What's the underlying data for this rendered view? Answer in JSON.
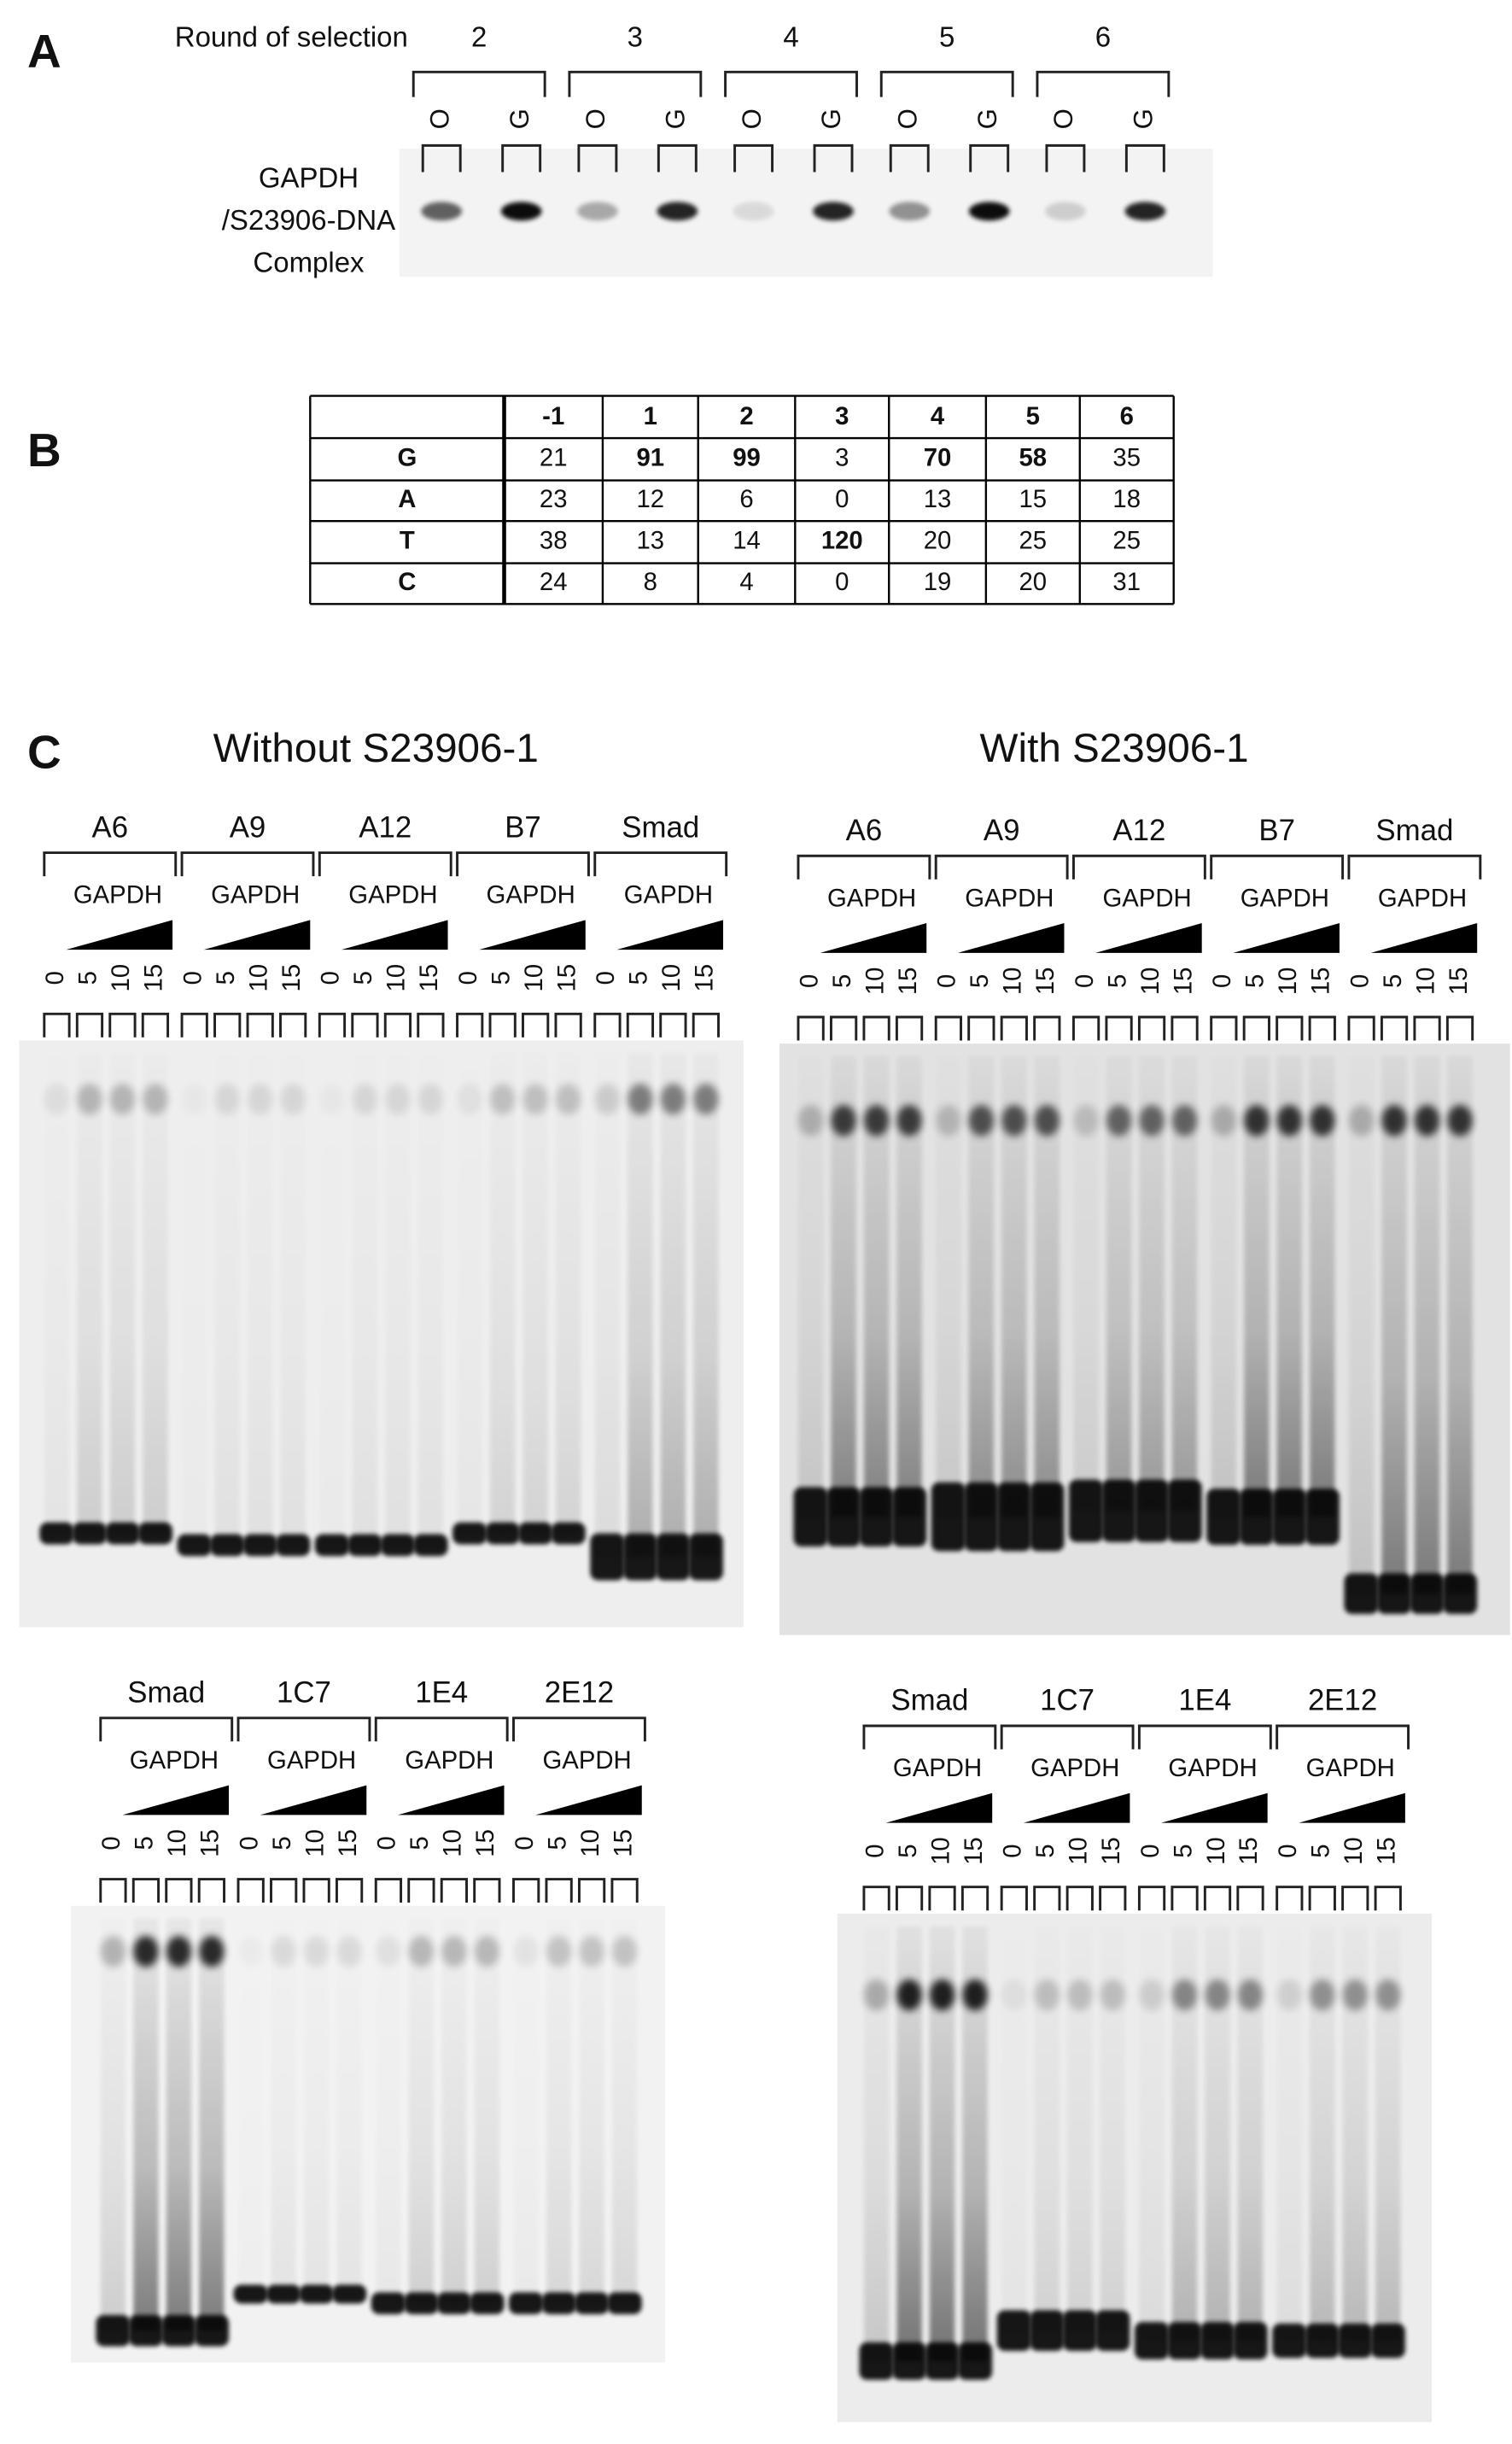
{
  "panel_a": {
    "label": "A",
    "round_label": "Round of selection",
    "rounds": [
      {
        "round": 2,
        "lanes": [
          "O",
          "G"
        ]
      },
      {
        "round": 3,
        "lanes": [
          "O",
          "G"
        ]
      },
      {
        "round": 4,
        "lanes": [
          "O",
          "G"
        ]
      },
      {
        "round": 5,
        "lanes": [
          "O",
          "G"
        ]
      },
      {
        "round": 6,
        "lanes": [
          "O",
          "G"
        ]
      }
    ],
    "complex_label": [
      "GAPDH",
      "/S23906-DNA",
      "Complex"
    ]
  },
  "panel_b": {
    "label": "B",
    "header": [
      -1,
      1,
      2,
      3,
      4,
      5,
      6
    ],
    "rows": [
      {
        "base": "G",
        "values": [
          21,
          91,
          99,
          3,
          70,
          58,
          35
        ],
        "bold": [
          false,
          true,
          true,
          false,
          true,
          true,
          false
        ]
      },
      {
        "base": "A",
        "values": [
          23,
          12,
          6,
          0,
          13,
          15,
          18
        ],
        "bold": [
          false,
          false,
          false,
          false,
          false,
          false,
          false
        ]
      },
      {
        "base": "T",
        "values": [
          38,
          13,
          14,
          120,
          20,
          25,
          25
        ],
        "bold": [
          false,
          false,
          false,
          true,
          false,
          false,
          false
        ]
      },
      {
        "base": "C",
        "values": [
          24,
          8,
          4,
          0,
          19,
          20,
          31
        ],
        "bold": [
          false,
          false,
          false,
          false,
          false,
          false,
          false
        ]
      }
    ]
  },
  "panel_c": {
    "label": "C",
    "conditions": [
      {
        "title": "Without S23906-1",
        "gels": [
          {
            "groups": [
              {
                "name": "A6",
                "protein": "GAPDH",
                "concentrations": [
                  0,
                  5,
                  10,
                  15
                ]
              },
              {
                "name": "A9",
                "protein": "GAPDH",
                "concentrations": [
                  0,
                  5,
                  10,
                  15
                ]
              },
              {
                "name": "A12",
                "protein": "GAPDH",
                "concentrations": [
                  0,
                  5,
                  10,
                  15
                ]
              },
              {
                "name": "B7",
                "protein": "GAPDH",
                "concentrations": [
                  0,
                  5,
                  10,
                  15
                ]
              },
              {
                "name": "Smad",
                "protein": "GAPDH",
                "concentrations": [
                  0,
                  5,
                  10,
                  15
                ]
              }
            ]
          },
          {
            "groups": [
              {
                "name": "Smad",
                "protein": "GAPDH",
                "concentrations": [
                  0,
                  5,
                  10,
                  15
                ]
              },
              {
                "name": "1C7",
                "protein": "GAPDH",
                "concentrations": [
                  0,
                  5,
                  10,
                  15
                ]
              },
              {
                "name": "1E4",
                "protein": "GAPDH",
                "concentrations": [
                  0,
                  5,
                  10,
                  15
                ]
              },
              {
                "name": "2E12",
                "protein": "GAPDH",
                "concentrations": [
                  0,
                  5,
                  10,
                  15
                ]
              }
            ]
          }
        ]
      },
      {
        "title": "With S23906-1",
        "gels": [
          {
            "groups": [
              {
                "name": "A6",
                "protein": "GAPDH",
                "concentrations": [
                  0,
                  5,
                  10,
                  15
                ]
              },
              {
                "name": "A9",
                "protein": "GAPDH",
                "concentrations": [
                  0,
                  5,
                  10,
                  15
                ]
              },
              {
                "name": "A12",
                "protein": "GAPDH",
                "concentrations": [
                  0,
                  5,
                  10,
                  15
                ]
              },
              {
                "name": "B7",
                "protein": "GAPDH",
                "concentrations": [
                  0,
                  5,
                  10,
                  15
                ]
              },
              {
                "name": "Smad",
                "protein": "GAPDH",
                "concentrations": [
                  0,
                  5,
                  10,
                  15
                ]
              }
            ]
          },
          {
            "groups": [
              {
                "name": "Smad",
                "protein": "GAPDH",
                "concentrations": [
                  0,
                  5,
                  10,
                  15
                ]
              },
              {
                "name": "1C7",
                "protein": "GAPDH",
                "concentrations": [
                  0,
                  5,
                  10,
                  15
                ]
              },
              {
                "name": "1E4",
                "protein": "GAPDH",
                "concentrations": [
                  0,
                  5,
                  10,
                  15
                ]
              },
              {
                "name": "2E12",
                "protein": "GAPDH",
                "concentrations": [
                  0,
                  5,
                  10,
                  15
                ]
              }
            ]
          }
        ]
      }
    ]
  }
}
